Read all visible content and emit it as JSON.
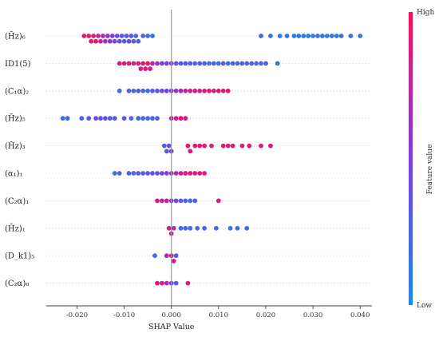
{
  "chart_data": {
    "type": "scatter",
    "subtype": "shap-beeswarm",
    "xlabel": "SHAP Value",
    "xticks": [
      -0.02,
      -0.01,
      0.0,
      0.01,
      0.02,
      0.03,
      0.04
    ],
    "xtick_labels": [
      "-0.020",
      "-0.010",
      "0.000",
      "0.010",
      "0.020",
      "0.030",
      "0.040"
    ],
    "xlim": [
      -0.0265,
      0.0425
    ],
    "zero_line": true,
    "colorbar": {
      "title": "Feature value",
      "high_label": "High",
      "low_label": "Low",
      "low_color": "#1e88e5",
      "high_color": "#ff0d57"
    },
    "features": [
      {
        "name": "(H̄z)₆",
        "points": [
          {
            "x": -0.0185,
            "c": 0.9
          },
          {
            "x": -0.0175,
            "c": 0.95
          },
          {
            "x": -0.017,
            "c": 0.9
          },
          {
            "x": -0.0165,
            "c": 0.85
          },
          {
            "x": -0.016,
            "c": 0.9
          },
          {
            "x": -0.0155,
            "c": 0.8
          },
          {
            "x": -0.015,
            "c": 0.75
          },
          {
            "x": -0.0145,
            "c": 0.7
          },
          {
            "x": -0.014,
            "c": 0.65
          },
          {
            "x": -0.0135,
            "c": 0.6
          },
          {
            "x": -0.013,
            "c": 0.55
          },
          {
            "x": -0.0125,
            "c": 0.5
          },
          {
            "x": -0.012,
            "c": 0.45
          },
          {
            "x": -0.0115,
            "c": 0.4
          },
          {
            "x": -0.011,
            "c": 0.35
          },
          {
            "x": -0.0105,
            "c": 0.3
          },
          {
            "x": -0.01,
            "c": 0.3
          },
          {
            "x": -0.0095,
            "c": 0.35
          },
          {
            "x": -0.009,
            "c": 0.4
          },
          {
            "x": -0.0085,
            "c": 0.35
          },
          {
            "x": -0.008,
            "c": 0.3
          },
          {
            "x": -0.0075,
            "c": 0.25
          },
          {
            "x": -0.007,
            "c": 0.3
          },
          {
            "x": -0.006,
            "c": 0.25
          },
          {
            "x": -0.005,
            "c": 0.2
          },
          {
            "x": -0.004,
            "c": 0.2
          },
          {
            "x": 0.019,
            "c": 0.2
          },
          {
            "x": 0.021,
            "c": 0.15
          },
          {
            "x": 0.023,
            "c": 0.1
          },
          {
            "x": 0.0245,
            "c": 0.15
          },
          {
            "x": 0.026,
            "c": 0.1
          },
          {
            "x": 0.027,
            "c": 0.12
          },
          {
            "x": 0.028,
            "c": 0.1
          },
          {
            "x": 0.029,
            "c": 0.08
          },
          {
            "x": 0.03,
            "c": 0.1
          },
          {
            "x": 0.031,
            "c": 0.15
          },
          {
            "x": 0.032,
            "c": 0.12
          },
          {
            "x": 0.033,
            "c": 0.1
          },
          {
            "x": 0.034,
            "c": 0.15
          },
          {
            "x": 0.035,
            "c": 0.1
          },
          {
            "x": 0.036,
            "c": 0.2
          },
          {
            "x": 0.038,
            "c": 0.15
          },
          {
            "x": 0.04,
            "c": 0.1
          }
        ]
      },
      {
        "name": "ID1(5)",
        "points": [
          {
            "x": -0.011,
            "c": 0.9
          },
          {
            "x": -0.01,
            "c": 0.85
          },
          {
            "x": -0.009,
            "c": 0.9
          },
          {
            "x": -0.008,
            "c": 0.85
          },
          {
            "x": -0.007,
            "c": 0.9
          },
          {
            "x": -0.0065,
            "c": 0.8
          },
          {
            "x": -0.006,
            "c": 0.85
          },
          {
            "x": -0.0055,
            "c": 0.9
          },
          {
            "x": -0.005,
            "c": 0.95
          },
          {
            "x": -0.0045,
            "c": 0.8
          },
          {
            "x": -0.004,
            "c": 0.7
          },
          {
            "x": -0.003,
            "c": 0.6
          },
          {
            "x": -0.002,
            "c": 0.55
          },
          {
            "x": -0.001,
            "c": 0.5
          },
          {
            "x": 0.0,
            "c": 0.45
          },
          {
            "x": 0.001,
            "c": 0.4
          },
          {
            "x": 0.002,
            "c": 0.35
          },
          {
            "x": 0.003,
            "c": 0.35
          },
          {
            "x": 0.004,
            "c": 0.3
          },
          {
            "x": 0.005,
            "c": 0.25
          },
          {
            "x": 0.006,
            "c": 0.3
          },
          {
            "x": 0.007,
            "c": 0.25
          },
          {
            "x": 0.008,
            "c": 0.2
          },
          {
            "x": 0.009,
            "c": 0.25
          },
          {
            "x": 0.01,
            "c": 0.2
          },
          {
            "x": 0.011,
            "c": 0.3
          },
          {
            "x": 0.012,
            "c": 0.2
          },
          {
            "x": 0.013,
            "c": 0.25
          },
          {
            "x": 0.014,
            "c": 0.2
          },
          {
            "x": 0.015,
            "c": 0.3
          },
          {
            "x": 0.016,
            "c": 0.2
          },
          {
            "x": 0.017,
            "c": 0.3
          },
          {
            "x": 0.018,
            "c": 0.25
          },
          {
            "x": 0.019,
            "c": 0.2
          },
          {
            "x": 0.02,
            "c": 0.3
          },
          {
            "x": 0.0225,
            "c": 0.2
          }
        ]
      },
      {
        "name": "(C₁α)₂",
        "points": [
          {
            "x": -0.011,
            "c": 0.2
          },
          {
            "x": -0.009,
            "c": 0.25
          },
          {
            "x": -0.008,
            "c": 0.2
          },
          {
            "x": -0.007,
            "c": 0.3
          },
          {
            "x": -0.006,
            "c": 0.25
          },
          {
            "x": -0.005,
            "c": 0.2
          },
          {
            "x": -0.004,
            "c": 0.3
          },
          {
            "x": -0.003,
            "c": 0.35
          },
          {
            "x": -0.002,
            "c": 0.4
          },
          {
            "x": -0.001,
            "c": 0.45
          },
          {
            "x": 0.0,
            "c": 0.55
          },
          {
            "x": 0.001,
            "c": 0.6
          },
          {
            "x": 0.002,
            "c": 0.7
          },
          {
            "x": 0.003,
            "c": 0.75
          },
          {
            "x": 0.004,
            "c": 0.8
          },
          {
            "x": 0.005,
            "c": 0.85
          },
          {
            "x": 0.006,
            "c": 0.8
          },
          {
            "x": 0.007,
            "c": 0.85
          },
          {
            "x": 0.008,
            "c": 0.9
          },
          {
            "x": 0.009,
            "c": 0.85
          },
          {
            "x": 0.01,
            "c": 0.9
          },
          {
            "x": 0.011,
            "c": 0.85
          },
          {
            "x": 0.012,
            "c": 0.9
          }
        ]
      },
      {
        "name": "(H̄z)₅",
        "points": [
          {
            "x": -0.023,
            "c": 0.15
          },
          {
            "x": -0.022,
            "c": 0.2
          },
          {
            "x": -0.019,
            "c": 0.25
          },
          {
            "x": -0.0175,
            "c": 0.3
          },
          {
            "x": -0.016,
            "c": 0.4
          },
          {
            "x": -0.015,
            "c": 0.35
          },
          {
            "x": -0.014,
            "c": 0.4
          },
          {
            "x": -0.013,
            "c": 0.35
          },
          {
            "x": -0.012,
            "c": 0.3
          },
          {
            "x": -0.01,
            "c": 0.3
          },
          {
            "x": -0.0085,
            "c": 0.25
          },
          {
            "x": -0.007,
            "c": 0.2
          },
          {
            "x": -0.006,
            "c": 0.2
          },
          {
            "x": -0.005,
            "c": 0.2
          },
          {
            "x": -0.004,
            "c": 0.2
          },
          {
            "x": -0.003,
            "c": 0.25
          },
          {
            "x": 0.0,
            "c": 0.75
          },
          {
            "x": 0.001,
            "c": 0.8
          },
          {
            "x": 0.002,
            "c": 0.9
          },
          {
            "x": 0.003,
            "c": 0.85
          }
        ]
      },
      {
        "name": "(H̄z)₃",
        "points": [
          {
            "x": -0.0015,
            "c": 0.3
          },
          {
            "x": -0.001,
            "c": 0.35
          },
          {
            "x": -0.0005,
            "c": 0.4
          },
          {
            "x": 0.0,
            "c": 0.45
          },
          {
            "x": 0.0035,
            "c": 0.9
          },
          {
            "x": 0.004,
            "c": 0.85
          },
          {
            "x": 0.005,
            "c": 0.9
          },
          {
            "x": 0.006,
            "c": 0.85
          },
          {
            "x": 0.007,
            "c": 0.9
          },
          {
            "x": 0.0085,
            "c": 0.85
          },
          {
            "x": 0.011,
            "c": 0.9
          },
          {
            "x": 0.012,
            "c": 0.85
          },
          {
            "x": 0.013,
            "c": 0.9
          },
          {
            "x": 0.015,
            "c": 0.85
          },
          {
            "x": 0.0165,
            "c": 0.9
          },
          {
            "x": 0.019,
            "c": 0.85
          },
          {
            "x": 0.021,
            "c": 0.9
          }
        ]
      },
      {
        "name": "(α₁)₁",
        "points": [
          {
            "x": -0.012,
            "c": 0.2
          },
          {
            "x": -0.011,
            "c": 0.25
          },
          {
            "x": -0.009,
            "c": 0.3
          },
          {
            "x": -0.008,
            "c": 0.25
          },
          {
            "x": -0.007,
            "c": 0.35
          },
          {
            "x": -0.006,
            "c": 0.3
          },
          {
            "x": -0.005,
            "c": 0.4
          },
          {
            "x": -0.004,
            "c": 0.35
          },
          {
            "x": -0.003,
            "c": 0.4
          },
          {
            "x": -0.002,
            "c": 0.45
          },
          {
            "x": -0.001,
            "c": 0.5
          },
          {
            "x": 0.0,
            "c": 0.6
          },
          {
            "x": 0.001,
            "c": 0.7
          },
          {
            "x": 0.002,
            "c": 0.8
          },
          {
            "x": 0.003,
            "c": 0.85
          },
          {
            "x": 0.004,
            "c": 0.9
          },
          {
            "x": 0.005,
            "c": 0.85
          },
          {
            "x": 0.006,
            "c": 0.9
          },
          {
            "x": 0.007,
            "c": 0.85
          }
        ]
      },
      {
        "name": "(C₂α)₁",
        "points": [
          {
            "x": -0.003,
            "c": 0.85
          },
          {
            "x": -0.002,
            "c": 0.8
          },
          {
            "x": -0.001,
            "c": 0.75
          },
          {
            "x": 0.0,
            "c": 0.6
          },
          {
            "x": 0.001,
            "c": 0.4
          },
          {
            "x": 0.002,
            "c": 0.3
          },
          {
            "x": 0.003,
            "c": 0.25
          },
          {
            "x": 0.004,
            "c": 0.2
          },
          {
            "x": 0.005,
            "c": 0.25
          },
          {
            "x": 0.01,
            "c": 0.85
          }
        ]
      },
      {
        "name": "(H̄z)₁",
        "points": [
          {
            "x": -0.0005,
            "c": 0.85
          },
          {
            "x": 0.0,
            "c": 0.8
          },
          {
            "x": 0.0005,
            "c": 0.7
          },
          {
            "x": 0.002,
            "c": 0.2
          },
          {
            "x": 0.003,
            "c": 0.2
          },
          {
            "x": 0.004,
            "c": 0.25
          },
          {
            "x": 0.0055,
            "c": 0.2
          },
          {
            "x": 0.007,
            "c": 0.25
          },
          {
            "x": 0.0095,
            "c": 0.2
          },
          {
            "x": 0.0125,
            "c": 0.15
          },
          {
            "x": 0.014,
            "c": 0.2
          },
          {
            "x": 0.016,
            "c": 0.15
          }
        ]
      },
      {
        "name": "(D_k1)₅",
        "points": [
          {
            "x": -0.0035,
            "c": 0.2
          },
          {
            "x": -0.001,
            "c": 0.7
          },
          {
            "x": 0.0,
            "c": 0.8
          },
          {
            "x": 0.0005,
            "c": 0.85
          },
          {
            "x": 0.001,
            "c": 0.3
          }
        ]
      },
      {
        "name": "(C₂α)₆",
        "points": [
          {
            "x": -0.003,
            "c": 0.85
          },
          {
            "x": -0.002,
            "c": 0.8
          },
          {
            "x": -0.001,
            "c": 0.7
          },
          {
            "x": 0.0,
            "c": 0.5
          },
          {
            "x": 0.001,
            "c": 0.3
          },
          {
            "x": 0.0035,
            "c": 0.85
          }
        ]
      }
    ]
  }
}
